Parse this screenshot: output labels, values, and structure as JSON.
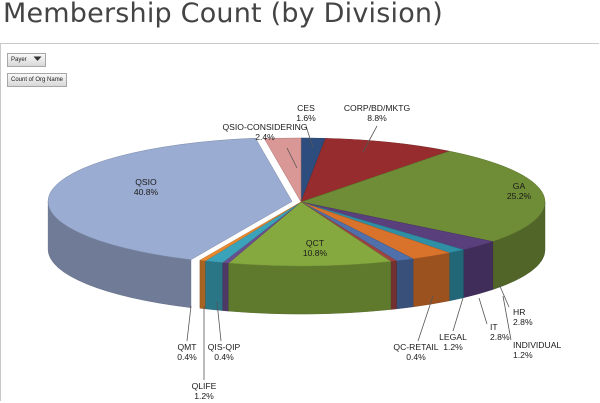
{
  "page": {
    "title": "Membership Count (by Division)"
  },
  "pivot": {
    "filter_field": "Payer",
    "filter_icon": "filter-dropdown-icon",
    "value_field": "Count of Org Name"
  },
  "chart_data": {
    "type": "pie",
    "style": "3d-exploded",
    "title": "",
    "legend": "none",
    "slices": [
      {
        "label": "CES",
        "value": 1.6,
        "display": "1.6%",
        "color": "#2c4d7e"
      },
      {
        "label": "CORP/BD/MKTG",
        "value": 8.8,
        "display": "8.8%",
        "color": "#962c2d"
      },
      {
        "label": "GA",
        "value": 25.2,
        "display": "25.2%",
        "color": "#6f8c36"
      },
      {
        "label": "HR",
        "value": 2.8,
        "display": "2.8%",
        "color": "#5a3f7d"
      },
      {
        "label": "INDIVIDUAL",
        "value": 1.2,
        "display": "1.2%",
        "color": "#2f8fa5"
      },
      {
        "label": "IT",
        "value": 2.8,
        "display": "2.8%",
        "color": "#d9722a"
      },
      {
        "label": "LEGAL",
        "value": 1.2,
        "display": "1.2%",
        "color": "#4f70aa"
      },
      {
        "label": "QC-RETAIL",
        "value": 0.4,
        "display": "0.4%",
        "color": "#9f4342"
      },
      {
        "label": "QCT",
        "value": 10.8,
        "display": "10.8%",
        "color": "#86a93f"
      },
      {
        "label": "QIS-QIP",
        "value": 0.4,
        "display": "0.4%",
        "color": "#6a4f8e"
      },
      {
        "label": "QLIFE",
        "value": 1.2,
        "display": "1.2%",
        "color": "#3aa3ba"
      },
      {
        "label": "QMT",
        "value": 0.4,
        "display": "0.4%",
        "color": "#e8892f"
      },
      {
        "label": "QSIO",
        "value": 40.8,
        "display": "40.8%",
        "color": "#9bacd2"
      },
      {
        "label": "QSIO-CONSIDERING",
        "value": 2.4,
        "display": "2.4%",
        "color": "#d99795"
      }
    ]
  }
}
